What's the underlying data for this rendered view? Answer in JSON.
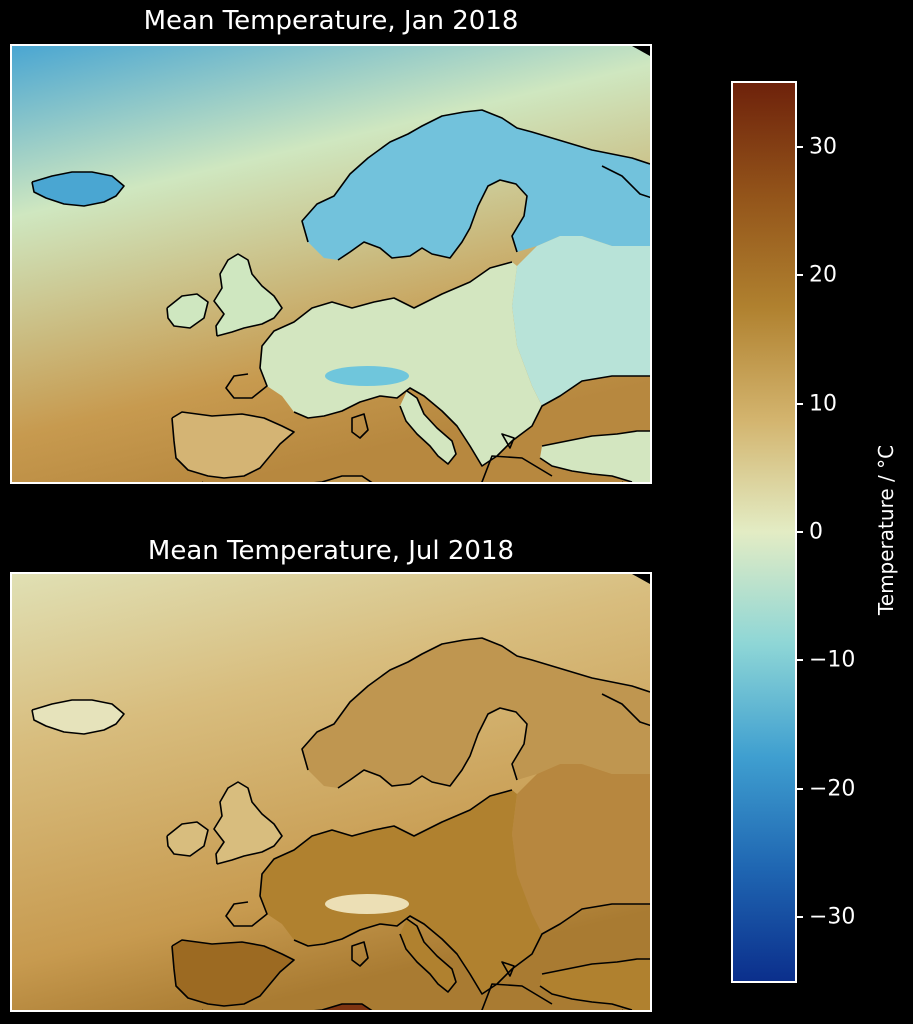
{
  "panels": [
    {
      "title": "Mean Temperature, Jan 2018",
      "colors": {
        "ocean_nw": "#4aa6d2",
        "ocean_mid": "#cfe7c0",
        "ocean_sw": "#c79a4f",
        "south": "#b7883f",
        "scandinavia": "#72c2dc",
        "russia": "#b8e3d8",
        "iceland": "#4aa6d2",
        "central": "#d3e6c0",
        "iberia": "#d4b474",
        "north_africa": "#c49a52",
        "alps": "#6fc6dc"
      }
    },
    {
      "title": "Mean Temperature, Jul 2018",
      "colors": {
        "ocean_nw": "#e0e0b4",
        "ocean_mid": "#d8bd7e",
        "ocean_sw": "#c79a4f",
        "south": "#a97b32",
        "scandinavia": "#bf9650",
        "russia": "#b7873f",
        "iceland": "#e6e3bb",
        "central": "#b0812f",
        "iberia": "#9c6a22",
        "north_africa": "#7e3412",
        "alps": "#ecdfb5"
      }
    }
  ],
  "colorbar": {
    "label": "Temperature / °C",
    "min": -35,
    "max": 35,
    "ticks": [
      {
        "value": 30,
        "label": "30"
      },
      {
        "value": 20,
        "label": "20"
      },
      {
        "value": 10,
        "label": "10"
      },
      {
        "value": 0,
        "label": "0"
      },
      {
        "value": -10,
        "label": "−10"
      },
      {
        "value": -20,
        "label": "−20"
      },
      {
        "value": -30,
        "label": "−30"
      }
    ],
    "stops": [
      "#0b2f8c",
      "#1f66b2",
      "#3f9fd0",
      "#8ed6d6",
      "#e3ecc4",
      "#d3b46e",
      "#b0812f",
      "#93541a",
      "#6e220b"
    ]
  }
}
